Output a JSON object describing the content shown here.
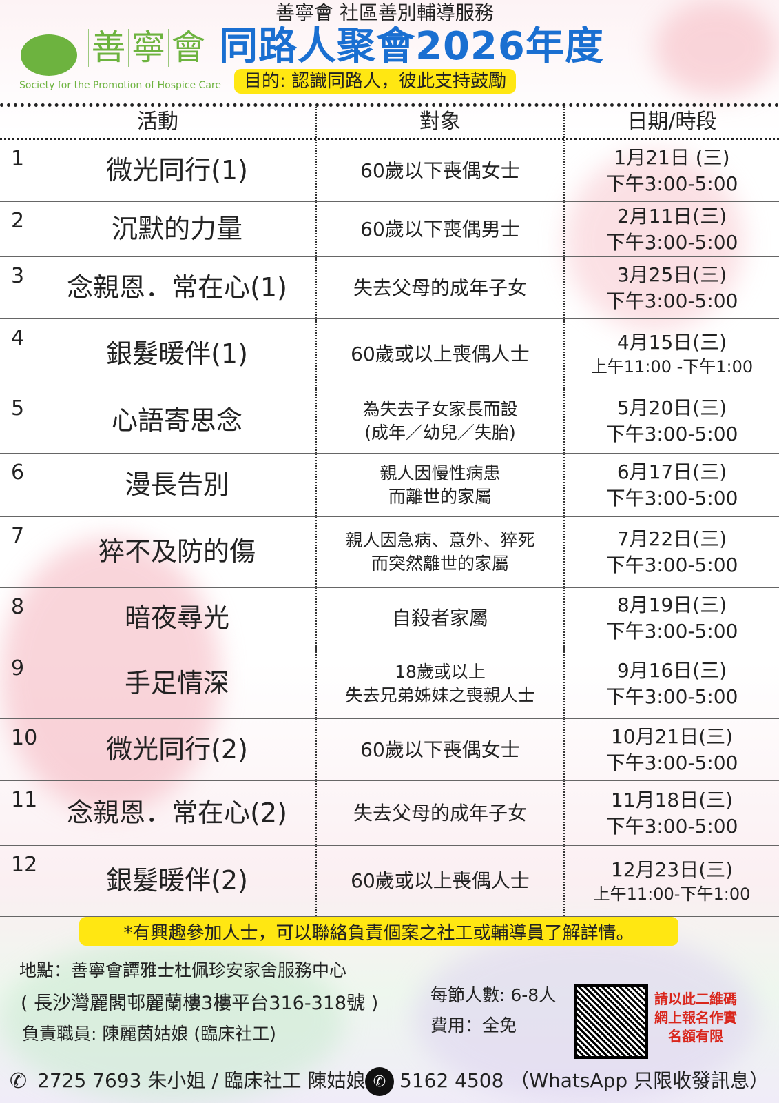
{
  "header": {
    "service": "善寧會 社區善別輔導服務",
    "title": "同路人聚會2026年度",
    "purpose": "目的: 認識同路人，彼此支持鼓勵",
    "logo": {
      "chars": [
        "善",
        "寧",
        "會"
      ],
      "english": "Society for the Promotion of Hospice Care",
      "color": "#6db33f"
    }
  },
  "table": {
    "headers": [
      "活動",
      "對象",
      "日期/時段"
    ],
    "rows": [
      {
        "no": "1",
        "activity": "微光同行(1)",
        "target": [
          "60歲以下喪偶女士"
        ],
        "date": "1月21日 (三)",
        "time": "下午3:00-5:00"
      },
      {
        "no": "2",
        "activity": "沉默的力量",
        "target": [
          "60歲以下喪偶男士"
        ],
        "date": "2月11日(三)",
        "time": "下午3:00-5:00"
      },
      {
        "no": "3",
        "activity": "念親恩．常在心(1)",
        "target": [
          "失去父母的成年子女"
        ],
        "date": "3月25日(三)",
        "time": "下午3:00-5:00"
      },
      {
        "no": "4",
        "activity": "銀髮暖伴(1)",
        "target": [
          "60歲或以上喪偶人士"
        ],
        "date": "4月15日(三)",
        "time": "上午11:00 -下午1:00"
      },
      {
        "no": "5",
        "activity": "心語寄思念",
        "target": [
          "為失去子女家長而設",
          "(成年／幼兒／失胎)"
        ],
        "date": "5月20日(三)",
        "time": "下午3:00-5:00"
      },
      {
        "no": "6",
        "activity": "漫長告別",
        "target": [
          "親人因慢性病患",
          "而離世的家屬"
        ],
        "date": "6月17日(三)",
        "time": "下午3:00-5:00"
      },
      {
        "no": "7",
        "activity": "猝不及防的傷",
        "target": [
          "親人因急病、意外、猝死",
          "而突然離世的家屬"
        ],
        "date": "7月22日(三)",
        "time": "下午3:00-5:00"
      },
      {
        "no": "8",
        "activity": "暗夜尋光",
        "target": [
          "自殺者家屬"
        ],
        "date": "8月19日(三)",
        "time": "下午3:00-5:00"
      },
      {
        "no": "9",
        "activity": "手足情深",
        "target": [
          "18歲或以上",
          "失去兄弟姊妹之喪親人士"
        ],
        "date": "9月16日(三)",
        "time": "下午3:00-5:00"
      },
      {
        "no": "10",
        "activity": "微光同行(2)",
        "target": [
          "60歲以下喪偶女士"
        ],
        "date": "10月21日(三)",
        "time": "下午3:00-5:00"
      },
      {
        "no": "11",
        "activity": "念親恩．常在心(2)",
        "target": [
          "失去父母的成年子女"
        ],
        "date": "11月18日(三)",
        "time": "下午3:00-5:00"
      },
      {
        "no": "12",
        "activity": "銀髮暖伴(2)",
        "target": [
          "60歲或以上喪偶人士"
        ],
        "date": "12月23日(三)",
        "time": "上午11:00-下午1:00"
      }
    ]
  },
  "footer": {
    "note": "*有興趣參加人士，可以聯絡負責個案之社工或輔導員了解詳情。",
    "location": "地點：善寧會譚雅士杜佩珍安家舍服務中心",
    "address": "( 長沙灣麗閣邨麗蘭樓3樓平台316-318號 )",
    "staff": "負責職員: 陳麗茵姑娘 (臨床社工)",
    "capacity": "每節人數: 6-8人",
    "fee": "費用：全免",
    "qr_text": [
      "請以此二維碼",
      "網上報名作實",
      "名額有限"
    ],
    "phone": "2725 7693 朱小姐 / 臨床社工 陳姑娘",
    "whatsapp": "5162 4508 （WhatsApp 只限收發訊息）"
  },
  "colors": {
    "title": "#1a6fd1",
    "highlight": "#ffe712",
    "qr_text": "#d9261c"
  }
}
